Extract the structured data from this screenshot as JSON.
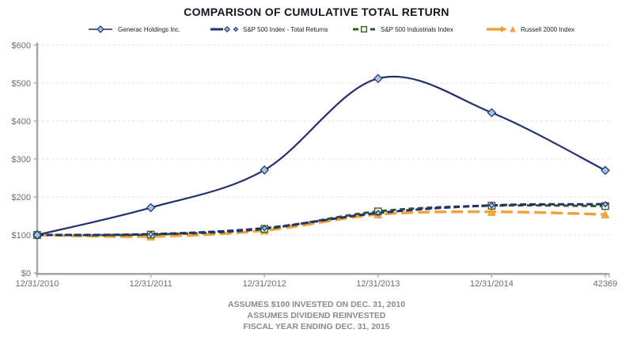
{
  "title": "COMPARISON OF CUMULATIVE TOTAL RETURN",
  "colors": {
    "navy": "#252F6E",
    "green": "#2E5B25",
    "orange": "#F0A13A",
    "grid": "#DCDCDC",
    "axis": "#A8A8A8",
    "tick_label": "#6E6E6E",
    "footnote": "#8A8A8A"
  },
  "chart_data": {
    "type": "line",
    "title": "COMPARISON OF CUMULATIVE TOTAL RETURN",
    "categories": [
      "12/31/2010",
      "12/31/2011",
      "12/31/2012",
      "12/31/2013",
      "12/31/2014",
      "42369"
    ],
    "y_tick_labels": [
      "$0",
      "$100",
      "$200",
      "$300",
      "$400",
      "$500",
      "$600"
    ],
    "y_tick_values": [
      0,
      100,
      200,
      300,
      400,
      500,
      600
    ],
    "ylim": [
      0,
      600
    ],
    "grid": "horizontal-dashed",
    "legend_position": "top",
    "series": [
      {
        "name": "Generac Holdings Inc.",
        "values": [
          100,
          172,
          271,
          512,
          422,
          270
        ],
        "color": "#252F6E",
        "dash": "none",
        "width": 2.2,
        "marker": "diamond",
        "marker_size": 5,
        "marker_fill": "#9DC3E6"
      },
      {
        "name": "S&P 500 Index - Total Returns",
        "values": [
          100,
          102,
          118,
          158,
          178,
          181
        ],
        "color": "#252F6E",
        "dash": "8 4",
        "width": 3,
        "marker": "diamond",
        "marker_size": 3.2,
        "marker_fill": "#9DC3E6"
      },
      {
        "name": "S&P 500 Industrials Index",
        "values": [
          100,
          101,
          116,
          162,
          177,
          176
        ],
        "color": "#2E5B25",
        "dash": "7 4.5",
        "width": 3,
        "marker": "square",
        "marker_size": 4.2,
        "marker_fill": "#EAF4E4"
      },
      {
        "name": "Russell 2000 Index",
        "values": [
          100,
          96,
          112,
          154,
          161,
          154
        ],
        "color": "#F0A13A",
        "dash": "15 6",
        "width": 3.4,
        "marker": "triangle",
        "marker_size": 4.6,
        "marker_fill": "#F5A83F"
      }
    ],
    "footnotes": [
      "ASSUMES $100 INVESTED ON DEC. 31, 2010",
      "ASSUMES DIVIDEND REINVESTED",
      "FISCAL YEAR ENDING DEC. 31, 2015"
    ]
  }
}
